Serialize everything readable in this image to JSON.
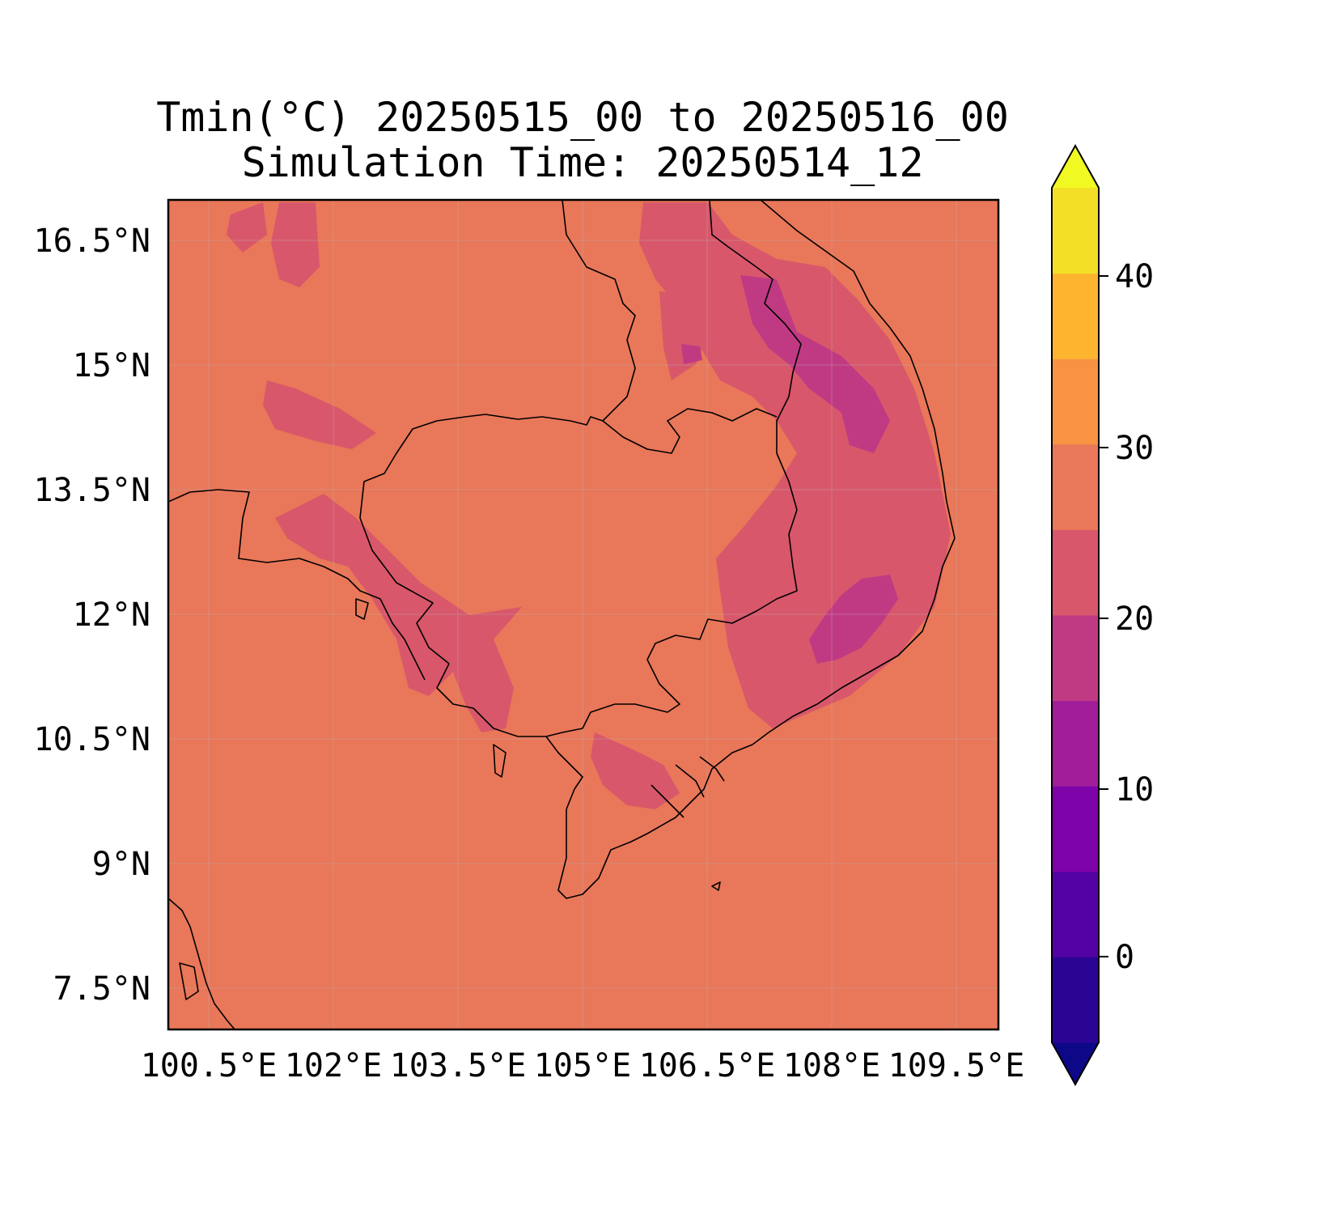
{
  "figure": {
    "title_line1": "Tmin(°C) 20250515_00 to 20250516_00",
    "title_line2": "Simulation Time: 20250514_12"
  },
  "map": {
    "background_color": "#e97759",
    "lat_ticks": [
      "16.5°N",
      "15°N",
      "13.5°N",
      "12°N",
      "10.5°N",
      "9°N",
      "7.5°N"
    ],
    "lon_ticks": [
      "100.5°E",
      "102°E",
      "103.5°E",
      "105°E",
      "106.5°E",
      "108°E",
      "109.5°E"
    ],
    "lon_range": [
      100.0,
      110.0
    ],
    "lat_range": [
      7.0,
      17.0
    ]
  },
  "colorbar": {
    "ticks": [
      "0",
      "10",
      "20",
      "30",
      "40"
    ],
    "levels": [
      -5,
      0,
      5,
      10,
      15,
      20,
      25,
      30,
      35,
      40,
      45
    ],
    "colors": [
      "#0d0887",
      "#2a0593",
      "#5302a3",
      "#7e03a8",
      "#a21d9a",
      "#c03a83",
      "#d8576b",
      "#e97759",
      "#f79342",
      "#fdb42f",
      "#f3e026",
      "#f0f921"
    ],
    "extend": "both"
  }
}
